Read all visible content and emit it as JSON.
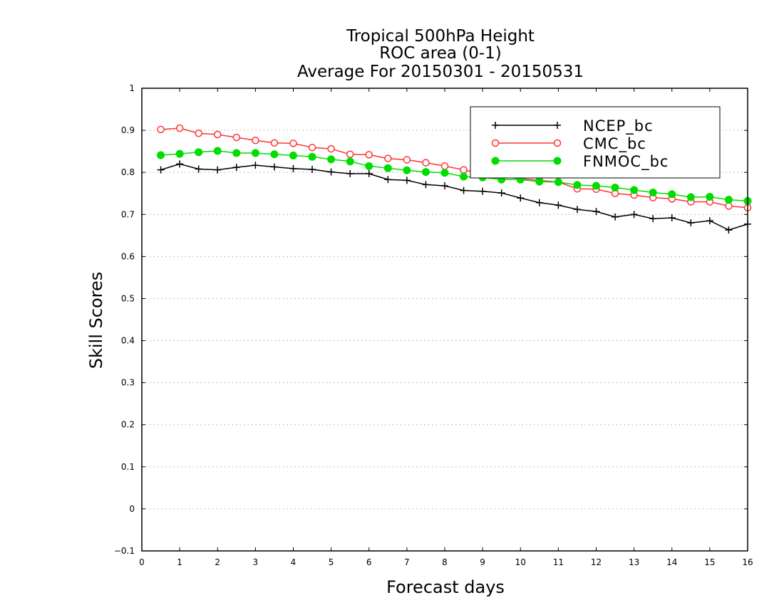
{
  "chart_data": {
    "type": "line",
    "title": [
      "Tropical 500hPa Height",
      "ROC area (0-1)",
      "Average For 20150301 - 20150531"
    ],
    "xlabel": "Forecast days",
    "ylabel": "Skill Scores",
    "xlim": [
      0,
      16
    ],
    "ylim": [
      -0.1,
      1
    ],
    "xticks": [
      "0",
      "1",
      "2",
      "3",
      "4",
      "5",
      "6",
      "7",
      "8",
      "9",
      "10",
      "11",
      "12",
      "13",
      "14",
      "15",
      "16"
    ],
    "yticks": [
      "−0.1",
      "0",
      "0.1",
      "0.2",
      "0.3",
      "0.4",
      "0.5",
      "0.6",
      "0.7",
      "0.8",
      "0.9",
      "1"
    ],
    "grid": "horizontal dotted",
    "legend": "top-right",
    "x": [
      0.5,
      1,
      1.5,
      2,
      2.5,
      3,
      3.5,
      4,
      4.5,
      5,
      5.5,
      6,
      6.5,
      7,
      7.5,
      8,
      8.5,
      9,
      9.5,
      10,
      10.5,
      11,
      11.5,
      12,
      12.5,
      13,
      13.5,
      14,
      14.5,
      15,
      15.5,
      16
    ],
    "series": [
      {
        "name": "NCEP_bc",
        "color": "#000000",
        "marker": "plus",
        "values": [
          0.806,
          0.82,
          0.808,
          0.806,
          0.812,
          0.817,
          0.813,
          0.809,
          0.807,
          0.801,
          0.797,
          0.797,
          0.783,
          0.781,
          0.771,
          0.768,
          0.757,
          0.755,
          0.751,
          0.739,
          0.728,
          0.722,
          0.712,
          0.707,
          0.694,
          0.7,
          0.69,
          0.692,
          0.68,
          0.685,
          0.663,
          0.677
        ]
      },
      {
        "name": "CMC_bc",
        "color": "#ff3333",
        "marker": "open-circle",
        "values": [
          0.902,
          0.905,
          0.893,
          0.89,
          0.883,
          0.876,
          0.87,
          0.869,
          0.859,
          0.856,
          0.843,
          0.842,
          0.833,
          0.83,
          0.823,
          0.815,
          0.806,
          0.796,
          0.79,
          0.785,
          0.781,
          0.777,
          0.761,
          0.76,
          0.75,
          0.746,
          0.74,
          0.737,
          0.73,
          0.73,
          0.72,
          0.716
        ]
      },
      {
        "name": "FNMOC_bc",
        "color": "#00dd00",
        "marker": "filled-circle",
        "values": [
          0.841,
          0.844,
          0.848,
          0.851,
          0.846,
          0.846,
          0.843,
          0.84,
          0.837,
          0.831,
          0.826,
          0.815,
          0.81,
          0.805,
          0.801,
          0.799,
          0.79,
          0.788,
          0.783,
          0.783,
          0.778,
          0.777,
          0.77,
          0.768,
          0.764,
          0.758,
          0.752,
          0.748,
          0.741,
          0.742,
          0.735,
          0.732
        ]
      }
    ]
  }
}
